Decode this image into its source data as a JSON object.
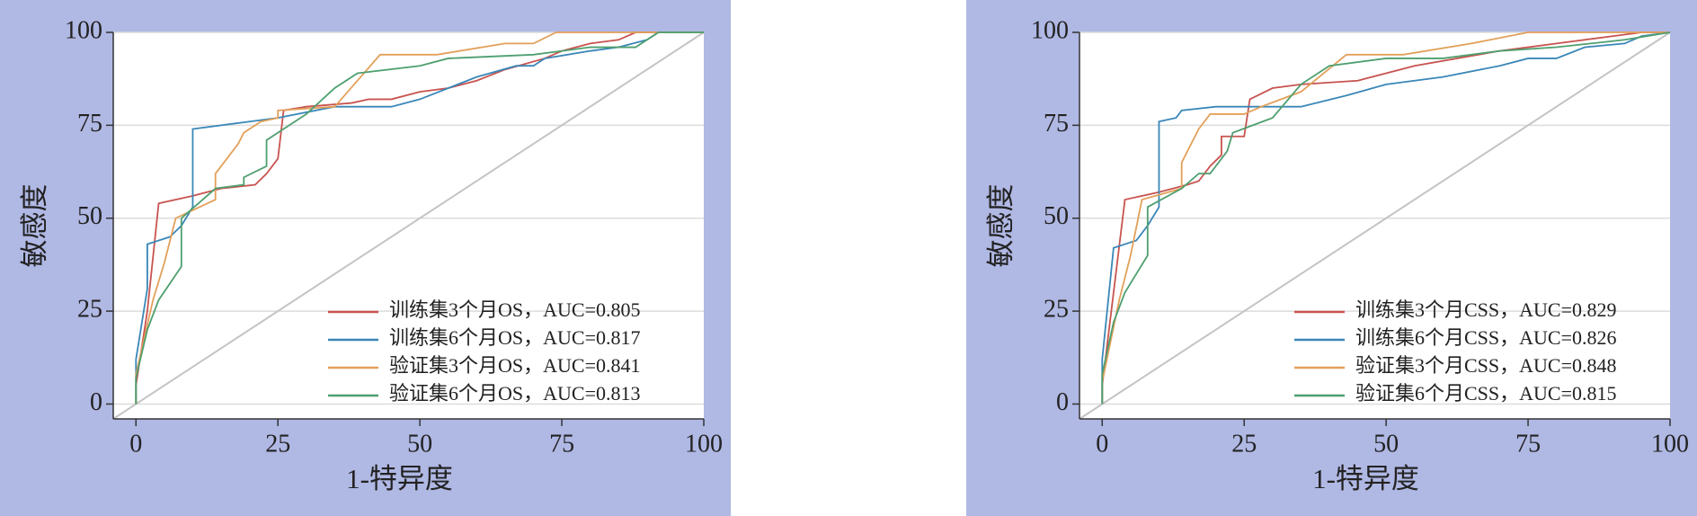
{
  "chart_data": [
    {
      "type": "line",
      "xlabel": "1-特异度",
      "ylabel": "敏感度",
      "xlim": [
        -4,
        100
      ],
      "ylim": [
        -4,
        100
      ],
      "xticks": [
        0,
        25,
        50,
        75,
        100
      ],
      "yticks": [
        0,
        25,
        50,
        75,
        100
      ],
      "grid": true,
      "legend": "lower right",
      "series": [
        {
          "name": "训练集3个月OS，AUC=0.805",
          "color": "#c8534f",
          "x": [
            0,
            0,
            2,
            4,
            10,
            15,
            21,
            23,
            25,
            26,
            30,
            38,
            41,
            45,
            50,
            55,
            60,
            65,
            72,
            75,
            80,
            85,
            88,
            100
          ],
          "values": [
            0,
            5,
            25,
            54,
            56,
            58,
            59,
            62,
            66,
            79,
            80,
            81,
            82,
            82,
            84,
            85,
            87,
            90,
            93,
            95,
            97,
            98,
            100,
            100
          ]
        },
        {
          "name": "训练集6个月OS，AUC=0.817",
          "color": "#3a87b8",
          "x": [
            0,
            0,
            2,
            2,
            6,
            8,
            10,
            10,
            20,
            25,
            35,
            45,
            50,
            60,
            67,
            70,
            72,
            80,
            85,
            90,
            92,
            100
          ],
          "values": [
            0,
            12,
            31,
            43,
            45,
            48,
            53,
            74,
            76,
            77,
            80,
            80,
            82,
            88,
            91,
            91,
            93,
            95,
            96,
            98,
            100,
            100
          ]
        },
        {
          "name": "验证集3个月OS，AUC=0.841",
          "color": "#e2a05a",
          "x": [
            0,
            0,
            3,
            5,
            7,
            14,
            14,
            18,
            19,
            22,
            25,
            25,
            35,
            43,
            53,
            65,
            70,
            74,
            100
          ],
          "values": [
            0,
            8,
            28,
            38,
            50,
            55,
            62,
            70,
            73,
            76,
            77,
            79,
            80,
            94,
            94,
            97,
            97,
            100,
            100
          ]
        },
        {
          "name": "验证集6个月OS，AUC=0.813",
          "color": "#4e9f6f",
          "x": [
            0,
            0,
            2,
            4,
            8,
            8,
            14,
            19,
            19,
            23,
            23,
            30,
            35,
            39,
            50,
            55,
            70,
            80,
            88,
            92,
            100
          ],
          "values": [
            0,
            7,
            20,
            28,
            37,
            50,
            58,
            59,
            61,
            64,
            71,
            78,
            85,
            89,
            91,
            93,
            94,
            96,
            96,
            100,
            100
          ]
        }
      ]
    },
    {
      "type": "line",
      "xlabel": "1-特异度",
      "ylabel": "敏感度",
      "xlim": [
        -4,
        100
      ],
      "ylim": [
        -4,
        100
      ],
      "xticks": [
        0,
        25,
        50,
        75,
        100
      ],
      "yticks": [
        0,
        25,
        50,
        75,
        100
      ],
      "grid": true,
      "legend": "lower right",
      "series": [
        {
          "name": "训练集3个月CSS，AUC=0.829",
          "color": "#c8534f",
          "x": [
            0,
            0,
            2,
            4,
            10,
            15,
            17,
            19,
            21,
            21,
            25,
            26,
            30,
            35,
            45,
            50,
            55,
            70,
            80,
            90,
            95,
            100
          ],
          "values": [
            0,
            5,
            30,
            55,
            57,
            59,
            60,
            64,
            67,
            72,
            72,
            82,
            85,
            86,
            87,
            89,
            91,
            95,
            97,
            99,
            100,
            100
          ]
        },
        {
          "name": "训练集6个月CSS，AUC=0.826",
          "color": "#3a87b8",
          "x": [
            0,
            0,
            2,
            6,
            8,
            10,
            10,
            13,
            14,
            20,
            35,
            43,
            50,
            60,
            70,
            75,
            80,
            85,
            92,
            95,
            100
          ],
          "values": [
            0,
            12,
            42,
            44,
            48,
            53,
            76,
            77,
            79,
            80,
            80,
            83,
            86,
            88,
            91,
            93,
            93,
            96,
            97,
            99,
            100
          ]
        },
        {
          "name": "验证集3个月CSS，AUC=0.848",
          "color": "#e2a05a",
          "x": [
            0,
            0,
            3,
            5,
            7,
            14,
            14,
            17,
            19,
            25,
            28,
            35,
            43,
            53,
            65,
            75,
            100
          ],
          "values": [
            0,
            6,
            28,
            40,
            55,
            58,
            65,
            74,
            78,
            78,
            80,
            84,
            94,
            94,
            97,
            100,
            100
          ]
        },
        {
          "name": "验证集6个月CSS，AUC=0.815",
          "color": "#4e9f6f",
          "x": [
            0,
            0,
            2,
            4,
            8,
            8,
            14,
            17,
            19,
            22,
            23,
            30,
            35,
            40,
            50,
            60,
            70,
            80,
            92,
            100
          ],
          "values": [
            0,
            8,
            22,
            30,
            40,
            53,
            58,
            62,
            62,
            68,
            73,
            77,
            86,
            91,
            93,
            93,
            95,
            96,
            98,
            100
          ]
        }
      ]
    }
  ]
}
